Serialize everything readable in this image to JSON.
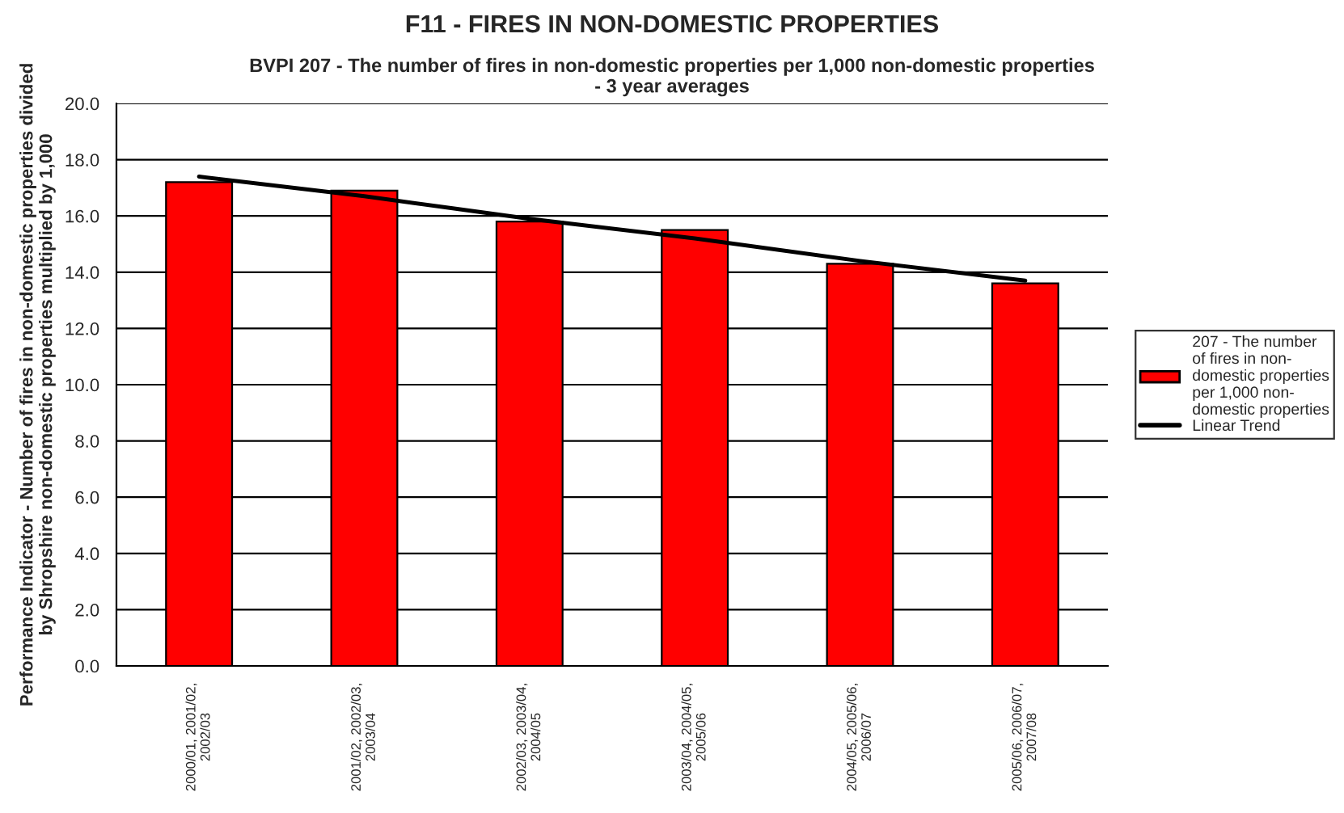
{
  "chart_data": {
    "type": "bar",
    "title": "F11 - FIRES IN NON-DOMESTIC PROPERTIES",
    "subtitle": "BVPI 207 - The number of fires in non-domestic properties per 1,000 non-domestic properties\n- 3 year averages",
    "ylabel": "Performance Indicator - Number of fires in non-domestic properties divided\nby Shropshire non-domestic properties multiplied by 1,000",
    "categories": [
      "2000/01, 2001/02,\n2002/03",
      "2001/02, 2002/03,\n2003/04",
      "2002/03, 2003/04,\n2004/05",
      "2003/04, 2004/05,\n2005/06",
      "2004/05, 2005/06,\n2006/07",
      "2005/06, 2006/07,\n2007/08"
    ],
    "series": [
      {
        "name": "207 - The number\nof fires in non-\ndomestic properties\nper 1,000 non-\ndomestic properties",
        "color": "#ff0000",
        "values": [
          17.2,
          16.9,
          15.8,
          15.5,
          14.3,
          13.6
        ]
      },
      {
        "name": "Linear Trend",
        "type": "line",
        "color": "#000000",
        "values": [
          17.4,
          16.7,
          15.9,
          15.2,
          14.4,
          13.7
        ]
      }
    ],
    "ylim": [
      0,
      20
    ],
    "yticks": [
      {
        "value": 0,
        "label": "0.0"
      },
      {
        "value": 2,
        "label": "2.0"
      },
      {
        "value": 4,
        "label": "4.0"
      },
      {
        "value": 6,
        "label": "6.0"
      },
      {
        "value": 8,
        "label": "8.0"
      },
      {
        "value": 10,
        "label": "10.0"
      },
      {
        "value": 12,
        "label": "12.0"
      },
      {
        "value": 14,
        "label": "14.0"
      },
      {
        "value": 16,
        "label": "16.0"
      },
      {
        "value": 18,
        "label": "18.0"
      },
      {
        "value": 20,
        "label": "20.0"
      }
    ],
    "grid": "y",
    "legend": "right"
  }
}
